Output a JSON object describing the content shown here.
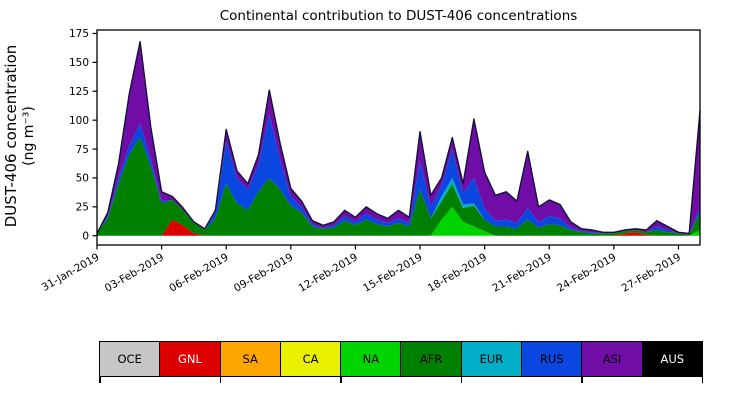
{
  "title": "Continental contribution to DUST-406 concentrations",
  "y_axis": {
    "label_line1": "DUST-406 concentration",
    "label_line2": "(ng m⁻³)",
    "ticks": [
      0,
      25,
      50,
      75,
      100,
      125,
      150,
      175
    ]
  },
  "x_axis": {
    "ticks": [
      {
        "pos": 0,
        "label": "31-Jan-2019"
      },
      {
        "pos": 3,
        "label": "03-Feb-2019"
      },
      {
        "pos": 6,
        "label": "06-Feb-2019"
      },
      {
        "pos": 9,
        "label": "09-Feb-2019"
      },
      {
        "pos": 12,
        "label": "12-Feb-2019"
      },
      {
        "pos": 15,
        "label": "15-Feb-2019"
      },
      {
        "pos": 18,
        "label": "18-Feb-2019"
      },
      {
        "pos": 21,
        "label": "21-Feb-2019"
      },
      {
        "pos": 24,
        "label": "24-Feb-2019"
      },
      {
        "pos": 27,
        "label": "27-Feb-2019"
      }
    ]
  },
  "chart_data": {
    "type": "area",
    "stacked": true,
    "title": "Continental contribution to DUST-406 concentrations",
    "xlabel": "",
    "ylabel": "DUST-406 concentration (ng m⁻³)",
    "x_unit": "days since 31-Jan-2019, 12-hourly estimates",
    "xlim": [
      0,
      28
    ],
    "ylim": [
      -8,
      178
    ],
    "grid": false,
    "legend_position": "bottom",
    "outline_color": "#13123a",
    "x": [
      0,
      0.5,
      1,
      1.5,
      2,
      2.5,
      3,
      3.5,
      4,
      4.5,
      5,
      5.5,
      6,
      6.5,
      7,
      7.5,
      8,
      8.5,
      9,
      9.5,
      10,
      10.5,
      11,
      11.5,
      12,
      12.5,
      13,
      13.5,
      14,
      14.5,
      15,
      15.5,
      16,
      16.5,
      17,
      17.5,
      18,
      18.5,
      19,
      19.5,
      20,
      20.5,
      21,
      21.5,
      22,
      22.5,
      23,
      23.5,
      24,
      24.5,
      25,
      25.5,
      26,
      26.5,
      27,
      27.5,
      28
    ],
    "series": [
      {
        "name": "OCE",
        "color": "#c6c6c6",
        "values": [
          0,
          0,
          0,
          0,
          0,
          0,
          0,
          0,
          0,
          0,
          0,
          0,
          0,
          0,
          0,
          0,
          0,
          0,
          0,
          0,
          0,
          0,
          0,
          0,
          0,
          0,
          0,
          0,
          0,
          0,
          0,
          0,
          0,
          0,
          0,
          0,
          0,
          0,
          0,
          0,
          0,
          0,
          0,
          0,
          0,
          0,
          0,
          0,
          0,
          0,
          0,
          0,
          0,
          0,
          0,
          0,
          0
        ]
      },
      {
        "name": "GNL",
        "color": "#dd0000",
        "values": [
          0,
          0,
          0,
          0,
          0,
          0,
          0,
          14,
          9,
          2,
          0,
          0,
          0,
          0,
          0,
          0,
          0,
          0,
          0,
          0,
          0,
          0,
          0,
          0,
          0,
          0,
          0,
          0,
          0,
          0,
          0,
          0,
          0,
          0,
          0,
          0,
          0,
          0,
          0,
          0,
          0,
          0,
          0,
          0,
          0,
          0,
          0,
          0,
          0,
          2,
          3,
          1,
          0,
          0,
          0,
          0,
          0
        ]
      },
      {
        "name": "SA",
        "color": "#ffa500",
        "values": [
          0,
          0,
          0,
          0,
          0,
          0,
          0,
          0,
          0,
          0,
          0,
          0,
          0,
          0,
          0,
          0,
          0,
          0,
          0,
          0,
          0,
          0,
          0,
          0,
          0,
          0,
          0,
          0,
          0,
          0,
          0,
          0,
          0,
          0,
          0,
          0,
          0,
          0,
          0,
          0,
          0,
          0,
          0,
          0,
          0,
          0,
          0,
          0,
          0,
          0,
          0,
          0,
          0,
          0,
          0,
          0,
          0
        ]
      },
      {
        "name": "CA",
        "color": "#e8f000",
        "values": [
          0,
          0,
          0,
          0,
          0,
          0,
          0,
          0,
          0,
          0,
          0,
          0,
          0,
          0,
          0,
          0,
          0,
          0,
          0,
          0,
          0,
          0,
          0,
          0,
          0,
          0,
          0,
          0,
          0,
          0,
          0,
          0,
          0,
          0,
          0,
          0,
          0,
          0,
          0,
          0,
          0,
          0,
          0,
          0,
          0,
          0,
          0,
          0,
          0,
          0,
          0,
          0,
          0,
          0,
          0,
          0,
          0
        ]
      },
      {
        "name": "NA",
        "color": "#00d400",
        "values": [
          0,
          0,
          0,
          0,
          0,
          0,
          0,
          0,
          0,
          0,
          0,
          0,
          0,
          0,
          0,
          0,
          0,
          0,
          0,
          0,
          0,
          0,
          0,
          0,
          0,
          0,
          0,
          0,
          0,
          0,
          0,
          0,
          14,
          25,
          12,
          8,
          4,
          0,
          0,
          0,
          0,
          0,
          0,
          0,
          0,
          0,
          0,
          0,
          0,
          0,
          0,
          0,
          0,
          0,
          0,
          0,
          5
        ]
      },
      {
        "name": "AFR",
        "color": "#008000",
        "values": [
          2,
          15,
          45,
          70,
          85,
          60,
          28,
          17,
          13,
          9,
          5,
          15,
          45,
          28,
          22,
          38,
          50,
          40,
          26,
          20,
          8,
          6,
          7,
          13,
          9,
          14,
          10,
          8,
          11,
          8,
          40,
          15,
          16,
          20,
          12,
          18,
          10,
          8,
          8,
          6,
          14,
          7,
          10,
          9,
          5,
          3,
          2,
          2,
          2,
          2,
          2,
          2,
          5,
          3,
          2,
          1,
          15
        ]
      },
      {
        "name": "EUR",
        "color": "#00aec8",
        "values": [
          0,
          0,
          0,
          0,
          0,
          0,
          0,
          0,
          0,
          0,
          0,
          0,
          0,
          0,
          0,
          0,
          0,
          0,
          0,
          0,
          0,
          0,
          0,
          0,
          0,
          0,
          0,
          0,
          0,
          0,
          0,
          0,
          4,
          5,
          3,
          2,
          0,
          0,
          0,
          0,
          0,
          0,
          0,
          0,
          0,
          0,
          0,
          0,
          0,
          0,
          0,
          0,
          0,
          0,
          0,
          0,
          0
        ]
      },
      {
        "name": "RUS",
        "color": "#0a46e0",
        "values": [
          0,
          2,
          5,
          8,
          12,
          6,
          2,
          0,
          0,
          0,
          0,
          5,
          37,
          22,
          18,
          24,
          55,
          26,
          8,
          5,
          2,
          1,
          2,
          4,
          3,
          5,
          4,
          3,
          4,
          3,
          25,
          10,
          10,
          25,
          10,
          22,
          10,
          5,
          6,
          5,
          10,
          5,
          7,
          6,
          2,
          1,
          1,
          0,
          0,
          0,
          0,
          0,
          3,
          2,
          0,
          0,
          5
        ]
      },
      {
        "name": "ASI",
        "color": "#6f0da6",
        "values": [
          0,
          3,
          12,
          45,
          71,
          28,
          8,
          3,
          2,
          1,
          1,
          2,
          10,
          6,
          5,
          8,
          21,
          14,
          7,
          5,
          3,
          2,
          3,
          5,
          4,
          6,
          5,
          4,
          7,
          5,
          25,
          10,
          6,
          10,
          8,
          51,
          31,
          22,
          24,
          19,
          49,
          13,
          14,
          12,
          5,
          2,
          2,
          1,
          1,
          1,
          1,
          2,
          5,
          3,
          1,
          1,
          83
        ]
      },
      {
        "name": "AUS",
        "color": "#000000",
        "values": [
          0,
          0,
          0,
          0,
          0,
          0,
          0,
          0,
          0,
          0,
          0,
          0,
          0,
          0,
          0,
          0,
          0,
          0,
          0,
          0,
          0,
          0,
          0,
          0,
          0,
          0,
          0,
          0,
          0,
          0,
          0,
          0,
          0,
          0,
          0,
          0,
          0,
          0,
          0,
          0,
          0,
          0,
          0,
          0,
          0,
          0,
          0,
          0,
          0,
          0,
          0,
          0,
          0,
          0,
          0,
          0,
          0
        ]
      }
    ]
  },
  "legend": {
    "items": [
      {
        "label": "OCE",
        "color": "#c6c6c6",
        "text_color": "#000000"
      },
      {
        "label": "GNL",
        "color": "#dd0000",
        "text_color": "#ffffff"
      },
      {
        "label": "SA",
        "color": "#ffa500",
        "text_color": "#000000"
      },
      {
        "label": "CA",
        "color": "#e8f000",
        "text_color": "#000000"
      },
      {
        "label": "NA",
        "color": "#00d400",
        "text_color": "#000000"
      },
      {
        "label": "AFR",
        "color": "#008000",
        "text_color": "#000000"
      },
      {
        "label": "EUR",
        "color": "#00aec8",
        "text_color": "#000000"
      },
      {
        "label": "RUS",
        "color": "#0a46e0",
        "text_color": "#000000"
      },
      {
        "label": "ASI",
        "color": "#6f0da6",
        "text_color": "#000000"
      },
      {
        "label": "AUS",
        "color": "#000000",
        "text_color": "#ffffff"
      }
    ]
  }
}
